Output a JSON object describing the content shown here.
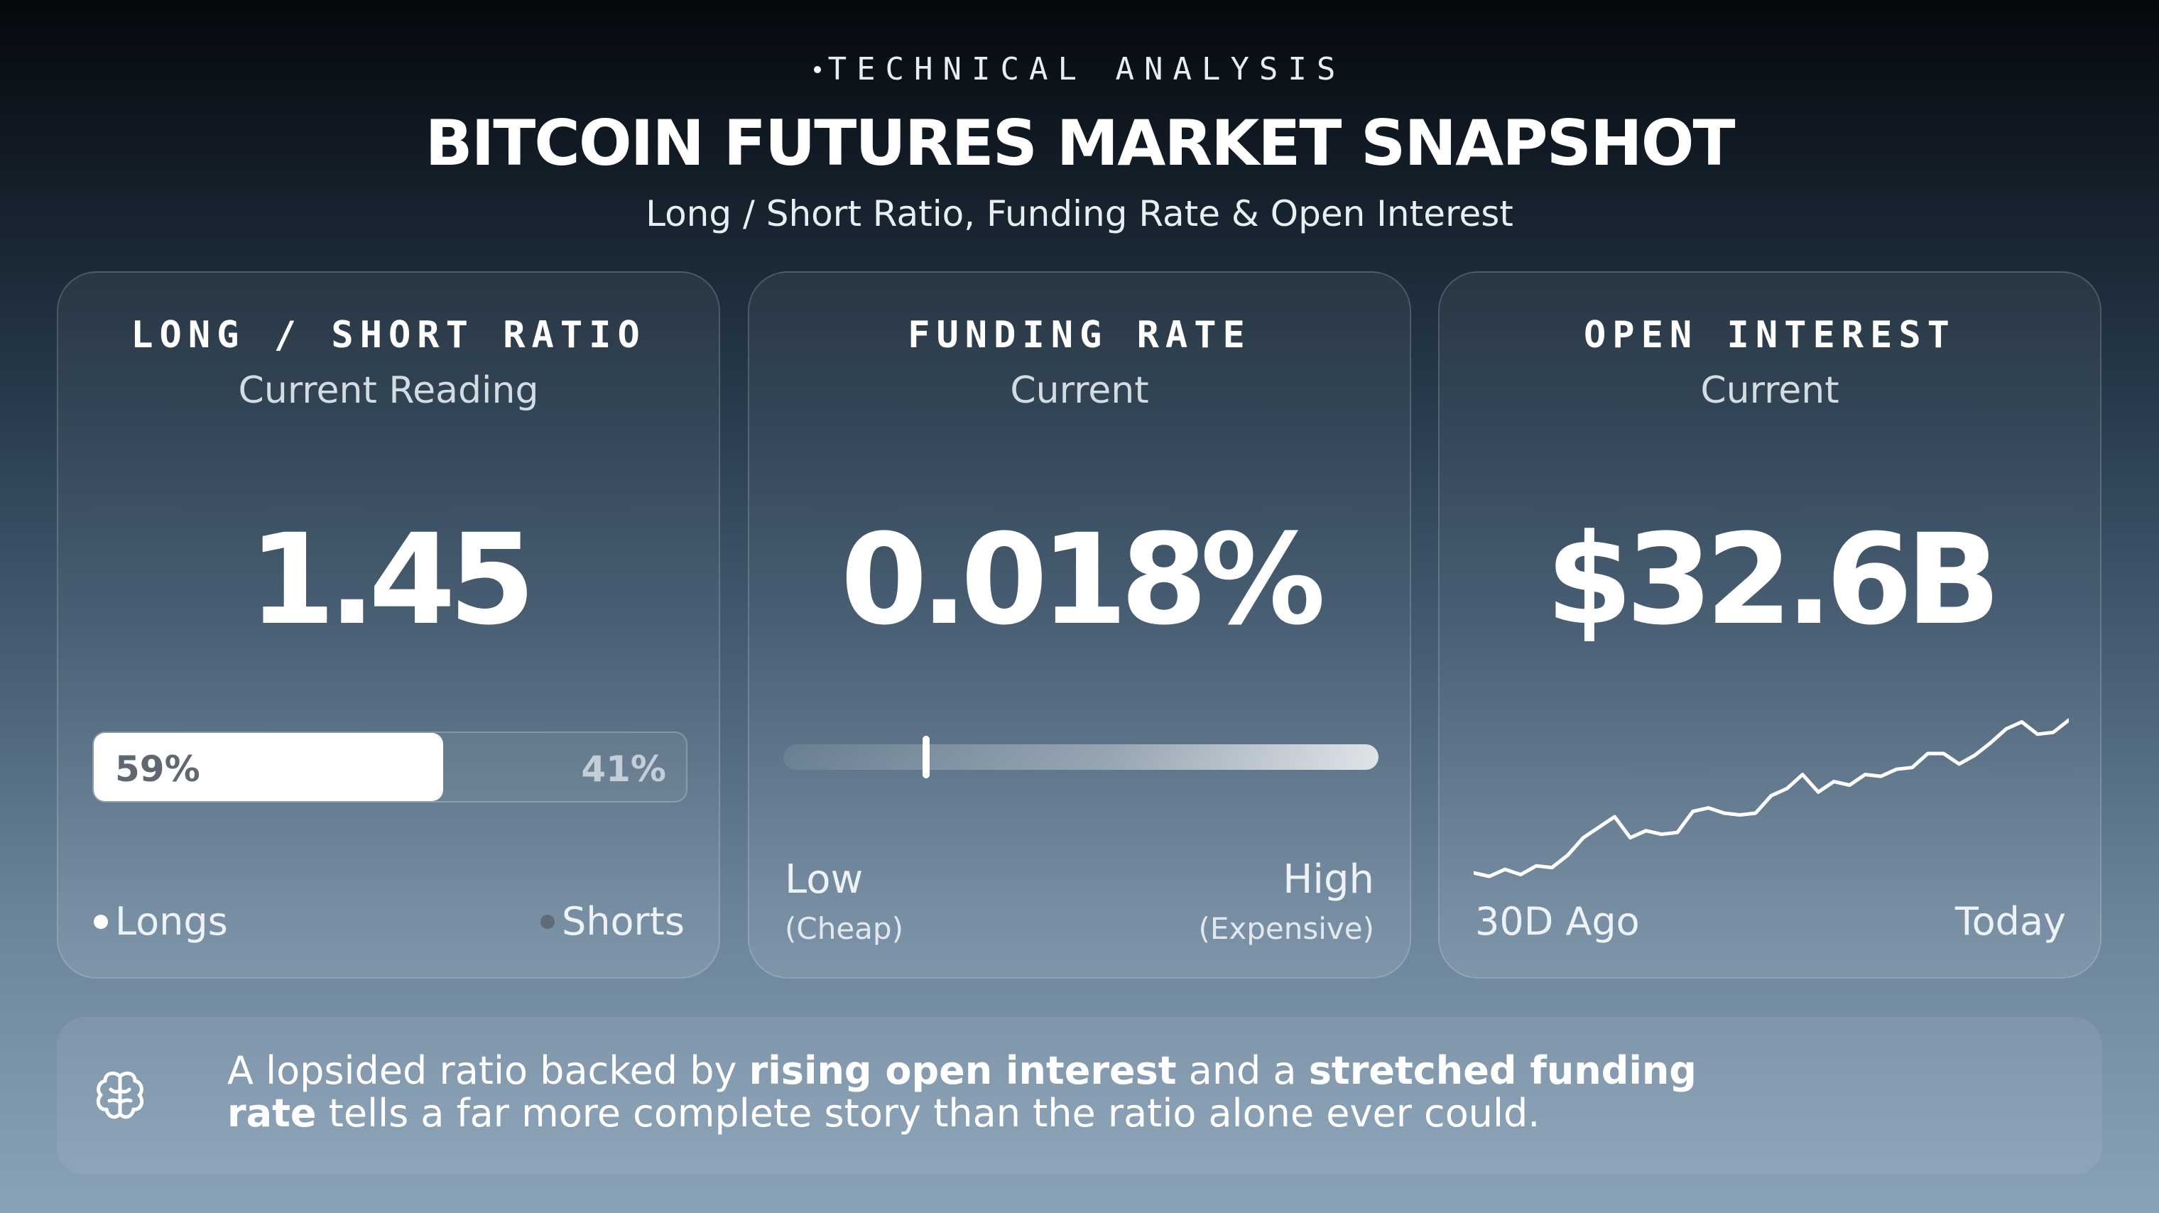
{
  "header": {
    "kicker": "TECHNICAL ANALYSIS",
    "title": "BITCOIN FUTURES MARKET SNAPSHOT",
    "subtitle": "Long / Short Ratio, Funding Rate & Open Interest"
  },
  "cards": {
    "ratio": {
      "title": "LONG / SHORT RATIO",
      "subtitle": "Current Reading",
      "value": "1.45",
      "long_pct": 59,
      "long_label": "59%",
      "short_label": "41%",
      "legend_long": "Longs",
      "legend_short": "Shorts",
      "long_color": "#ffffff",
      "short_color": "#5f6c78"
    },
    "funding": {
      "title": "FUNDING RATE",
      "subtitle": "Current",
      "value": "0.018%",
      "marker_position": 0.24,
      "low_label": "Low",
      "low_sub": "(Cheap)",
      "high_label": "High",
      "high_sub": "(Expensive)"
    },
    "open_interest": {
      "title": "OPEN INTEREST",
      "subtitle": "Current",
      "value": "$32.6B",
      "start_label": "30D Ago",
      "end_label": "Today",
      "trend": [
        10,
        8,
        12,
        9,
        14,
        13,
        20,
        30,
        36,
        42,
        30,
        34,
        32,
        33,
        45,
        47,
        44,
        43,
        44,
        54,
        58,
        66,
        56,
        62,
        60,
        66,
        65,
        69,
        70,
        78,
        78,
        72,
        77,
        84,
        92,
        96,
        89,
        90,
        97
      ]
    }
  },
  "footer": {
    "icon": "brain-icon",
    "text_1": "A lopsided ratio backed by ",
    "bold_1": "rising open interest",
    "text_2": " and a ",
    "bold_2": "stretched funding rate",
    "text_3": " tells a far more complete story than the ratio alone ever could."
  }
}
